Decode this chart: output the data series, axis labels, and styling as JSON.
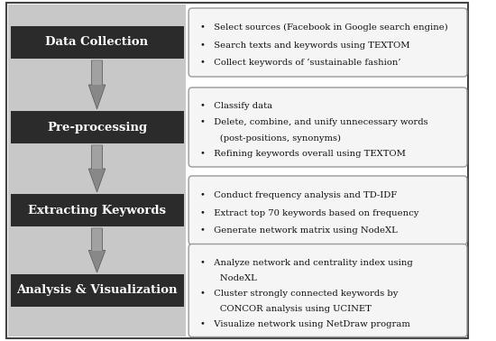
{
  "boxes": [
    {
      "label": "Data Collection"
    },
    {
      "label": "Pre-processing"
    },
    {
      "label": "Extracting Keywords"
    },
    {
      "label": "Analysis & Visualization"
    }
  ],
  "bullets": [
    [
      "•   Select sources (Facebook in Google search engine)",
      "•   Search texts and keywords using TEXTOM",
      "•   Collect keywords of ‘sustainable fashion’"
    ],
    [
      "•   Classify data",
      "•   Delete, combine, and unify unnecessary words",
      "       (post-positions, synonyms)",
      "•   Refining keywords overall using TEXTOM"
    ],
    [
      "•   Conduct frequency analysis and TD-IDF",
      "•   Extract top 70 keywords based on frequency",
      "•   Generate network matrix using NodeXL"
    ],
    [
      "•   Analyze network and centrality index using",
      "       NodeXL",
      "•   Cluster strongly connected keywords by",
      "       CONCOR analysis using UCINET",
      "•   Visualize network using NetDraw program"
    ]
  ],
  "left_bg": "#c8c8c8",
  "box_bg": "#2b2b2b",
  "box_text_color": "#ffffff",
  "bullet_box_bg": "#f5f5f5",
  "bullet_box_edge": "#999999",
  "outer_bg": "#ffffff",
  "outer_border": "#444444",
  "arrow_color_top": "#aaaaaa",
  "arrow_color_bot": "#555555",
  "figw": 5.5,
  "figh": 3.78,
  "dpi": 100
}
